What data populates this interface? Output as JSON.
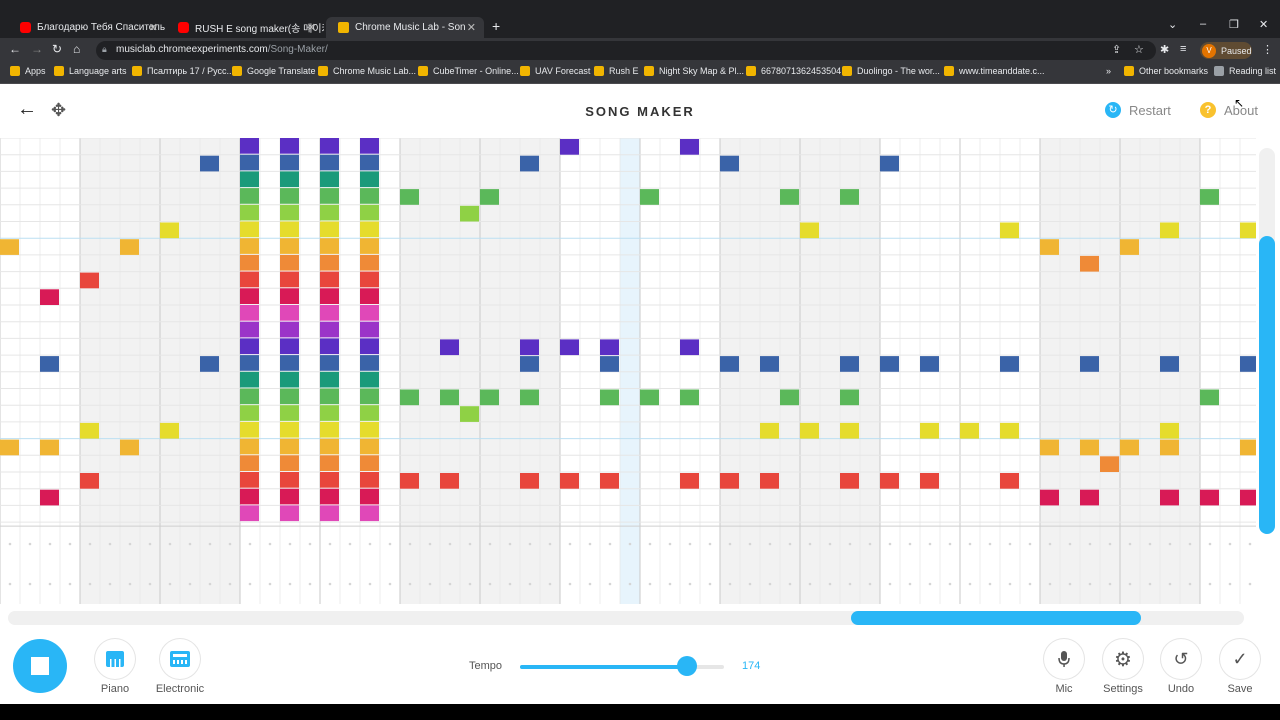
{
  "browser": {
    "tabs": [
      {
        "title": "Благодарю Тебя Спаситель - Yo",
        "icon": "youtube-icon"
      },
      {
        "title": "RUSH E song maker(송 메이커)Ru",
        "icon": "youtube-icon"
      },
      {
        "title": "Chrome Music Lab - Song M",
        "icon": "music-lab-icon"
      }
    ],
    "url_host": "musiclab.chromeexperiments.com",
    "url_path": "/Song-Maker/",
    "profile_status": "Paused",
    "profile_initial": "V",
    "bookmarks": [
      "Apps",
      "Language arts",
      "Псалтирь 17 / Русс...",
      "Google Translate",
      "Chrome Music Lab...",
      "CubeTimer - Online...",
      "UAV Forecast",
      "Rush E",
      "Night Sky Map & Pl...",
      "6678071362453504",
      "Duolingo - The wor...",
      "www.timeanddate.c..."
    ],
    "other_bookmarks": "Other bookmarks",
    "reading_list": "Reading list"
  },
  "app": {
    "title": "SONG MAKER",
    "restart_label": "Restart",
    "about_label": "About"
  },
  "grid_notes": {
    "rows_total": 23,
    "columns_visible": 31,
    "melody_rows": [
      {
        "color": "#5b2fc4",
        "cols": [
          6,
          7,
          8,
          9,
          14,
          17,
          11,
          12,
          13,
          14,
          15,
          17
        ],
        "rowsets": [
          0,
          12
        ]
      },
      {
        "color": "#3a63a8"
      },
      {
        "color": "#1a9a7a"
      },
      {
        "color": "#5bb85a"
      },
      {
        "color": "#8fd145"
      },
      {
        "color": "#e5dc2c"
      },
      {
        "color": "#f0b533"
      },
      {
        "color": "#ef8a37"
      },
      {
        "color": "#e8463c"
      },
      {
        "color": "#d81a56"
      },
      {
        "color": "#e048b8"
      },
      {
        "color": "#9b34c8"
      }
    ],
    "colors": [
      "#5b2fc4",
      "#3a63a8",
      "#1a9a7a",
      "#5bb85a",
      "#8fd145",
      "#e5dc2c",
      "#f0b533",
      "#ef8a37",
      "#e8463c",
      "#d81a56",
      "#e048b8",
      "#9b34c8"
    ]
  },
  "footer": {
    "instruments": [
      {
        "label": "Piano",
        "icon": "piano-icon"
      },
      {
        "label": "Electronic",
        "icon": "electronic-icon"
      }
    ],
    "tempo_label": "Tempo",
    "tempo_value": "174",
    "tempo_level": 0.82,
    "tools": [
      {
        "label": "Mic",
        "icon": "mic-icon"
      },
      {
        "label": "Settings",
        "icon": "gear-icon"
      },
      {
        "label": "Undo",
        "icon": "undo-icon"
      },
      {
        "label": "Save",
        "icon": "check-icon"
      }
    ]
  }
}
